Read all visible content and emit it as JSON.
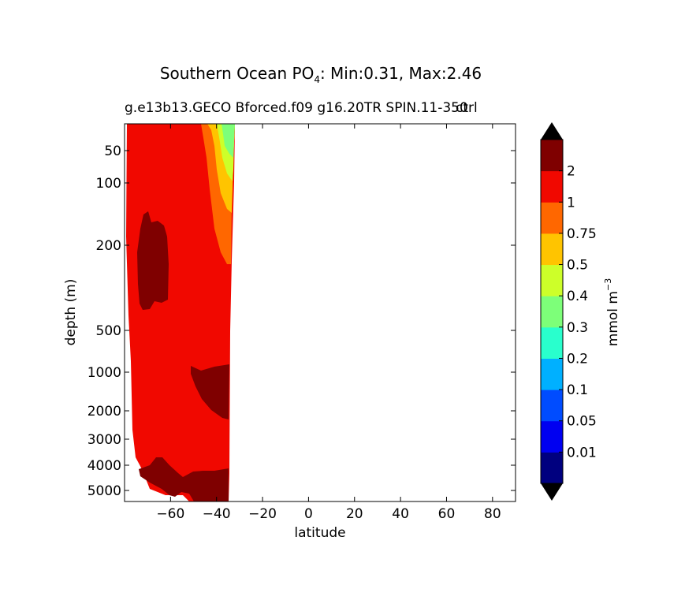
{
  "chart_data": {
    "type": "contour",
    "title": {
      "prefix": "Southern Ocean PO",
      "subscript": "4",
      "suffix": ": Min:0.31, Max:2.46"
    },
    "subtitle": "g.e13b13.GECO Bforced.f09 g16.20TR SPIN.11-350",
    "subtitle_overlap": "ctrl",
    "xlabel": "latitude",
    "ylabel": "depth (m)",
    "x_ticks": [
      "−60",
      "−40",
      "−20",
      "0",
      "20",
      "40",
      "60",
      "80"
    ],
    "x_tick_values": [
      -60,
      -40,
      -20,
      0,
      20,
      40,
      60,
      80
    ],
    "xlim": [
      -80,
      90
    ],
    "y_ticks": [
      "50",
      "100",
      "200",
      "500",
      "1000",
      "2000",
      "3000",
      "4000",
      "5000"
    ],
    "y_tick_values": [
      50,
      100,
      200,
      500,
      1000,
      2000,
      3000,
      4000,
      5000
    ],
    "colorbar": {
      "label": "mmol m",
      "label_superscript": "−3",
      "levels": [
        "0.01",
        "0.05",
        "0.1",
        "0.2",
        "0.3",
        "0.4",
        "0.5",
        "0.75",
        "1",
        "2"
      ],
      "colors": [
        "#00007f",
        "#0000f1",
        "#004cff",
        "#00b0ff",
        "#29ffcd",
        "#7dff79",
        "#cdff29",
        "#ffc400",
        "#ff6700",
        "#f10800",
        "#7f0000"
      ],
      "extend": "both"
    },
    "field_summary": {
      "min": 0.31,
      "max": 2.46,
      "lat_range_with_data": [
        -78,
        -33
      ]
    }
  }
}
